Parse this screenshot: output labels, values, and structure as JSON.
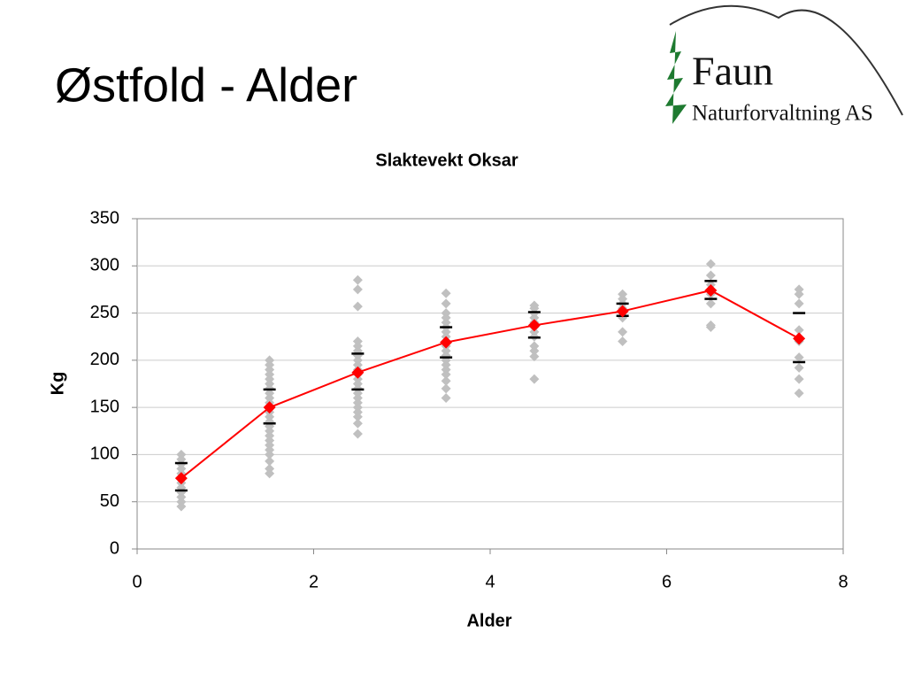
{
  "slide_title": "Østfold - Alder",
  "logo": {
    "name": "Faun",
    "subtitle": "Naturforvaltning AS"
  },
  "chart_data": {
    "type": "scatter",
    "title": "Slaktevekt Oksar",
    "x_label": "Alder",
    "y_label": "Kg",
    "xlim": [
      0,
      8
    ],
    "xticks": [
      0,
      2,
      4,
      6,
      8
    ],
    "ylim": [
      0,
      350
    ],
    "yticks": [
      0,
      50,
      100,
      150,
      200,
      250,
      300,
      350
    ],
    "grid": true,
    "series": [
      {
        "type": "scatter",
        "color": "#c0c0c0",
        "x": [
          0.5,
          0.5,
          0.5,
          0.5,
          0.5,
          0.5,
          0.5,
          0.5,
          0.5,
          0.5,
          0.5,
          0.5,
          1.5,
          1.5,
          1.5,
          1.5,
          1.5,
          1.5,
          1.5,
          1.5,
          1.5,
          1.5,
          1.5,
          1.5,
          1.5,
          1.5,
          1.5,
          1.5,
          1.5,
          1.5,
          1.5,
          1.5,
          1.5,
          1.5,
          1.5,
          1.5,
          2.5,
          2.5,
          2.5,
          2.5,
          2.5,
          2.5,
          2.5,
          2.5,
          2.5,
          2.5,
          2.5,
          2.5,
          2.5,
          2.5,
          2.5,
          2.5,
          2.5,
          2.5,
          2.5,
          2.5,
          2.5,
          2.5,
          3.5,
          3.5,
          3.5,
          3.5,
          3.5,
          3.5,
          3.5,
          3.5,
          3.5,
          3.5,
          3.5,
          3.5,
          3.5,
          3.5,
          3.5,
          3.5,
          3.5,
          3.5,
          3.5,
          4.5,
          4.5,
          4.5,
          4.5,
          4.5,
          4.5,
          4.5,
          4.5,
          4.5,
          4.5,
          4.5,
          4.5,
          5.5,
          5.5,
          5.5,
          5.5,
          5.5,
          5.5,
          5.5,
          5.5,
          6.5,
          6.5,
          6.5,
          6.5,
          6.5,
          6.5,
          6.5,
          7.5,
          7.5,
          7.5,
          7.5,
          7.5,
          7.5,
          7.5,
          7.5,
          7.5
        ],
        "values": [
          45,
          50,
          55,
          60,
          65,
          70,
          75,
          80,
          85,
          90,
          95,
          100,
          80,
          85,
          93,
          100,
          105,
          110,
          115,
          120,
          125,
          130,
          135,
          140,
          145,
          150,
          155,
          160,
          165,
          170,
          175,
          180,
          185,
          190,
          195,
          200,
          122,
          133,
          140,
          145,
          150,
          155,
          160,
          165,
          170,
          175,
          180,
          185,
          190,
          195,
          200,
          205,
          210,
          215,
          220,
          257,
          275,
          285,
          160,
          170,
          178,
          185,
          190,
          195,
          200,
          205,
          210,
          215,
          220,
          225,
          230,
          235,
          240,
          245,
          250,
          260,
          271,
          180,
          204,
          210,
          215,
          225,
          230,
          235,
          240,
          245,
          250,
          255,
          258,
          220,
          230,
          245,
          250,
          255,
          260,
          265,
          270,
          235,
          237,
          260,
          270,
          280,
          290,
          302,
          165,
          180,
          192,
          203,
          220,
          232,
          260,
          270,
          275
        ]
      },
      {
        "type": "dash",
        "color": "#000000",
        "x": [
          0.5,
          1.5,
          2.5,
          3.5,
          4.5,
          5.5,
          6.5,
          7.5
        ],
        "values": [
          91,
          169,
          207,
          235,
          251,
          260,
          284,
          250
        ]
      },
      {
        "type": "dash",
        "color": "#000000",
        "x": [
          0.5,
          1.5,
          2.5,
          3.5,
          4.5,
          5.5,
          6.5,
          7.5
        ],
        "values": [
          62,
          133,
          169,
          203,
          224,
          247,
          265,
          198
        ]
      },
      {
        "type": "line",
        "color": "#ff0000",
        "x": [
          0.5,
          1.5,
          2.5,
          3.5,
          4.5,
          5.5,
          6.5,
          7.5
        ],
        "values": [
          75,
          150,
          187,
          219,
          237,
          252,
          274,
          223
        ]
      }
    ]
  }
}
